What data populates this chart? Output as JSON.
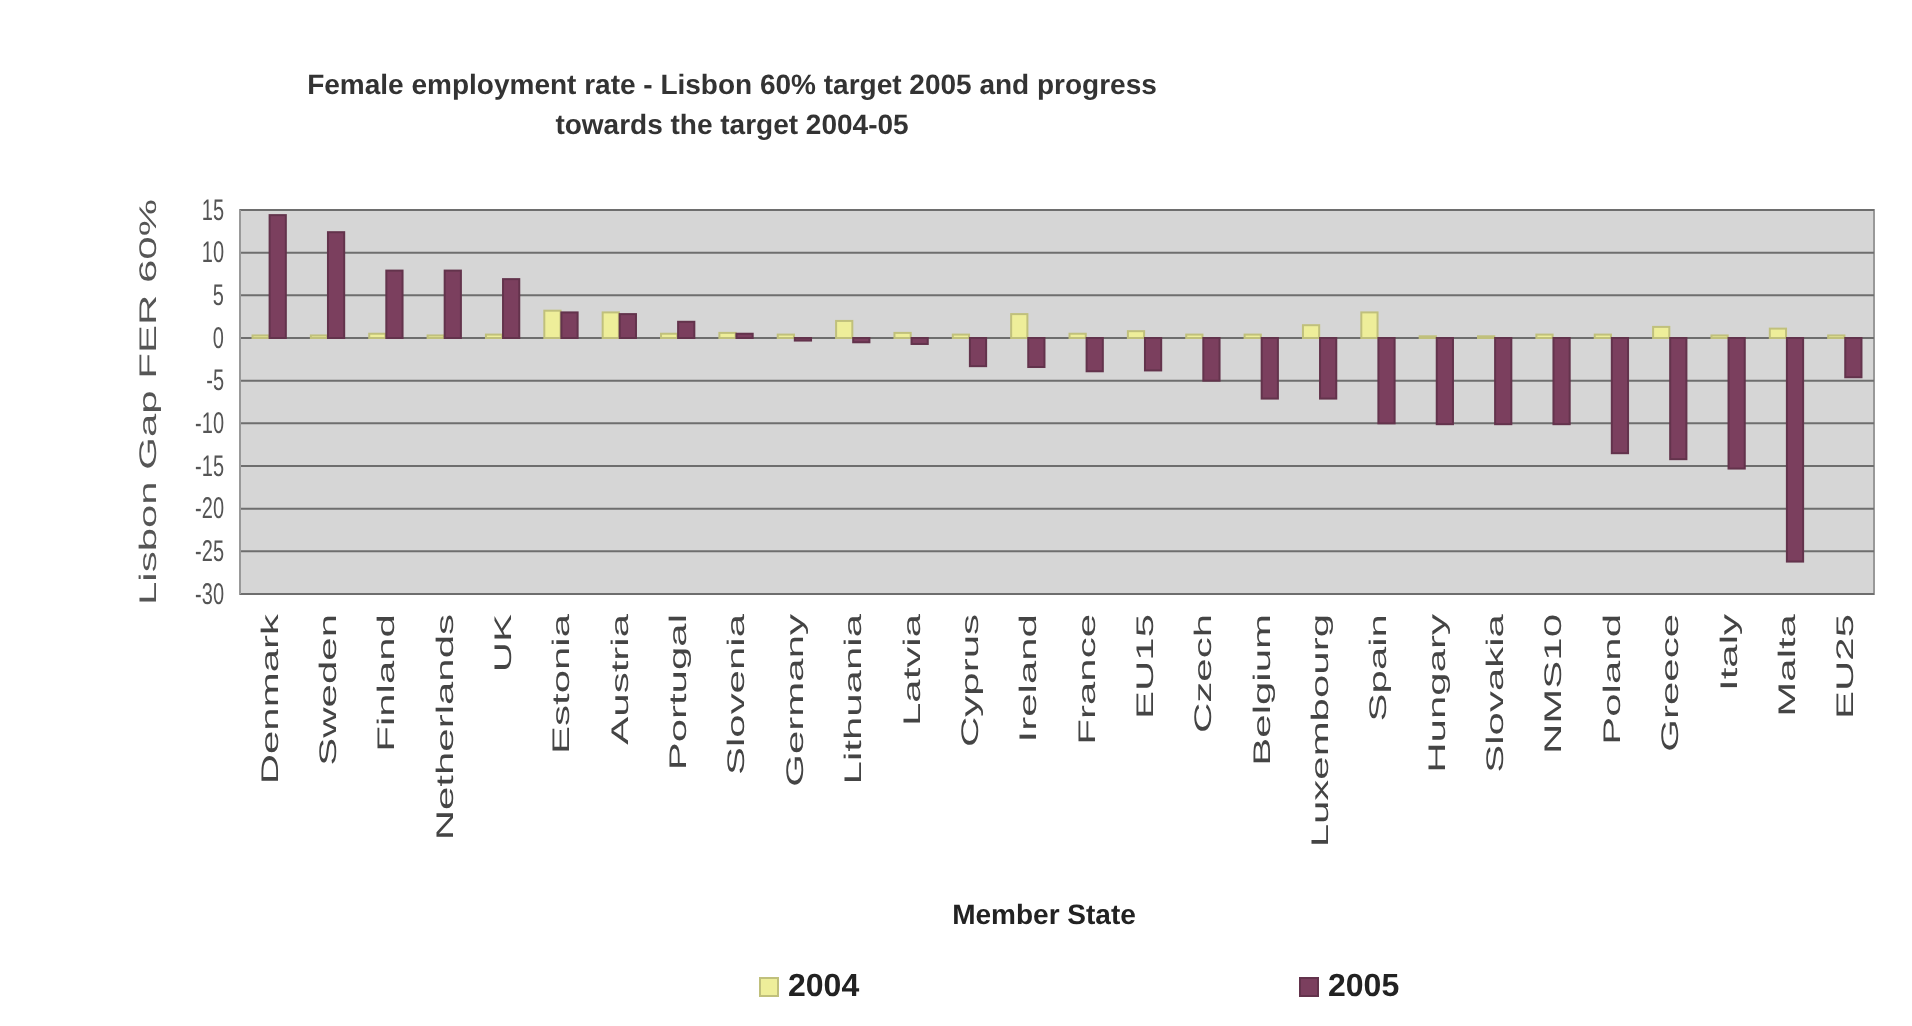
{
  "chart_data": {
    "type": "bar",
    "title": "Female employment rate - Lisbon 60% target 2005 and progress towards the target 2004-05",
    "xlabel": "Member State",
    "ylabel": "Lisbon Gap FER 60%",
    "categories": [
      "Denmark",
      "Sweden",
      "Finland",
      "Netherlands",
      "UK",
      "Estonia",
      "Austria",
      "Portugal",
      "Slovenia",
      "Germany",
      "Lithuania",
      "Latvia",
      "Cyprus",
      "Ireland",
      "France",
      "EU15",
      "Czech",
      "Belgium",
      "Luxembourg",
      "Spain",
      "Hungary",
      "Slovakia",
      "NMS10",
      "Poland",
      "Greece",
      "Italy",
      "Malta",
      "EU25"
    ],
    "series": [
      {
        "name": "2004",
        "color": "#eeee9a",
        "values": [
          0.3,
          0.3,
          0.5,
          0.3,
          0.4,
          3.2,
          3.0,
          0.5,
          0.6,
          0.4,
          2.0,
          0.6,
          0.4,
          2.8,
          0.5,
          0.8,
          0.4,
          0.4,
          1.5,
          3.0,
          0.2,
          0.2,
          0.4,
          0.4,
          1.3,
          0.3,
          1.1,
          0.3
        ]
      },
      {
        "name": "2005",
        "color": "#7b3f5e",
        "values": [
          14.4,
          12.4,
          7.9,
          7.9,
          6.9,
          3.0,
          2.8,
          1.9,
          0.5,
          -0.3,
          -0.5,
          -0.7,
          -3.3,
          -3.4,
          -3.9,
          -3.8,
          -5.0,
          -7.1,
          -7.1,
          -10.0,
          -10.1,
          -10.1,
          -10.1,
          -13.5,
          -14.2,
          -15.3,
          -26.2,
          -4.6
        ]
      }
    ],
    "ylim": [
      -30,
      15
    ],
    "yticks": [
      -30,
      -25,
      -20,
      -15,
      -10,
      -5,
      0,
      5,
      10,
      15
    ],
    "grid": "y",
    "legend": "bottom"
  }
}
